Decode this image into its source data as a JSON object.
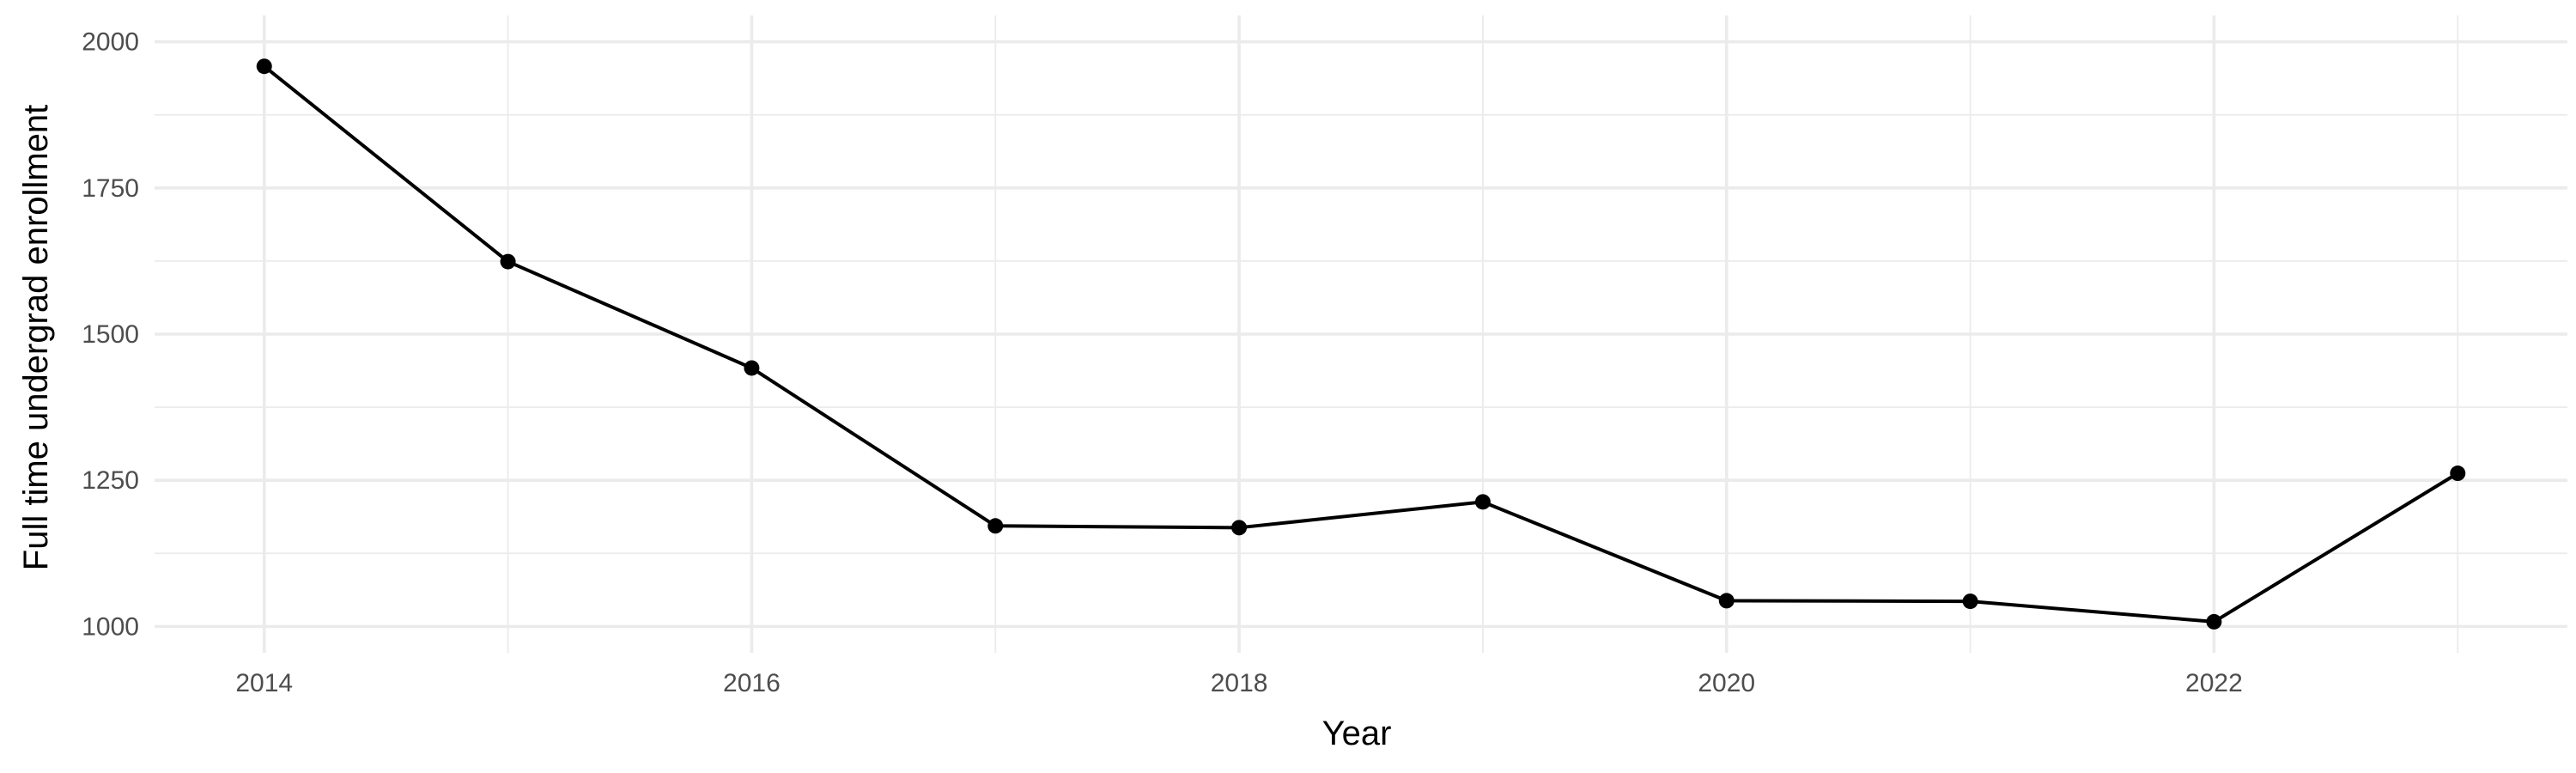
{
  "chart_data": {
    "type": "line",
    "title": "",
    "xlabel": "Year",
    "ylabel": "Full time undergrad enrollment",
    "x": [
      2014,
      2015,
      2016,
      2017,
      2018,
      2019,
      2020,
      2021,
      2022,
      2023
    ],
    "series": [
      {
        "values": [
          1958,
          1624,
          1442,
          1172,
          1169,
          1213,
          1044,
          1043,
          1008,
          1262
        ]
      }
    ],
    "xlim": [
      2013.55,
      2023.45
    ],
    "ylim": [
      1000,
      2000
    ],
    "x_ticks": [
      2014,
      2016,
      2018,
      2020,
      2022
    ],
    "x_tick_labels": [
      "2014",
      "2016",
      "2018",
      "2020",
      "2022"
    ],
    "y_ticks": [
      1000,
      1250,
      1500,
      1750,
      2000
    ],
    "y_tick_labels": [
      "1000",
      "1250",
      "1500",
      "1750",
      "2000"
    ],
    "grid": true,
    "legend": "none",
    "line_color": "#000000",
    "grid_color": "#ebebeb",
    "tick_label_color": "#4d4d4d"
  }
}
